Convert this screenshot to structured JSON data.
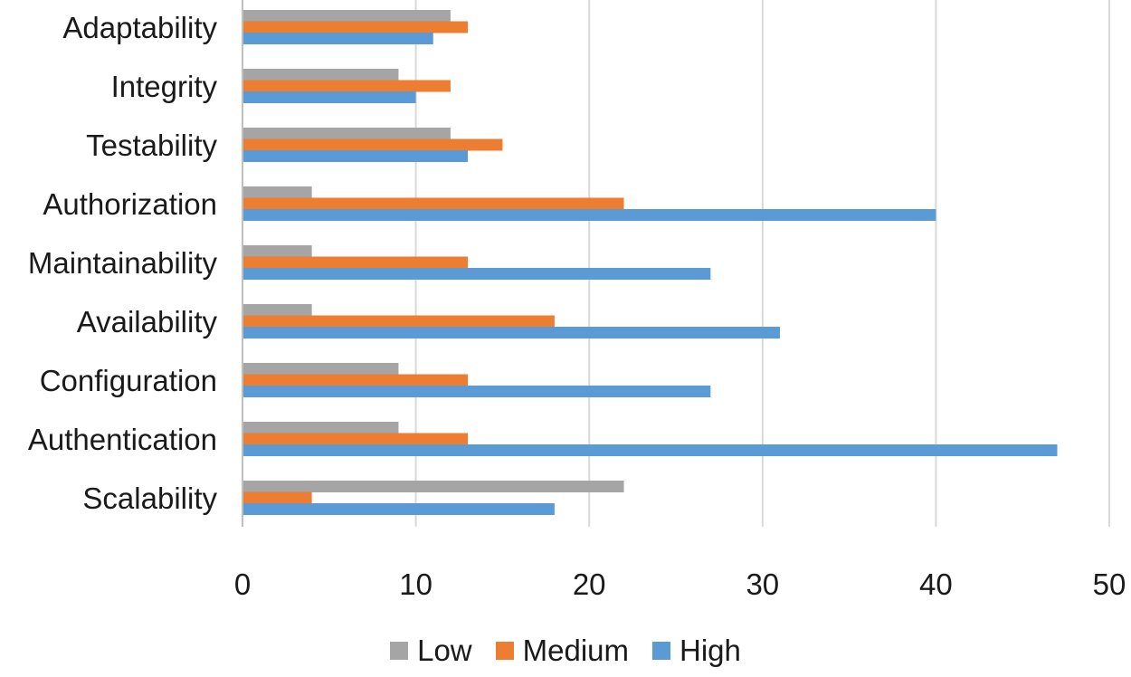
{
  "chart_data": {
    "type": "bar",
    "orientation": "horizontal",
    "title": "",
    "xlabel": "",
    "ylabel": "",
    "xlim": [
      0,
      50
    ],
    "x_ticks": [
      0,
      10,
      20,
      30,
      40,
      50
    ],
    "grid": true,
    "legend_position": "bottom",
    "categories": [
      "Adaptability",
      "Integrity",
      "Testability",
      "Authorization",
      "Maintainability",
      "Availability",
      "Configuration",
      "Authentication",
      "Scalability"
    ],
    "series": [
      {
        "name": "Low",
        "color": "#a5a5a5",
        "values": [
          12,
          9,
          12,
          4,
          4,
          4,
          9,
          9,
          22
        ]
      },
      {
        "name": "Medium",
        "color": "#ed7d31",
        "values": [
          13,
          12,
          15,
          22,
          13,
          18,
          13,
          13,
          4
        ]
      },
      {
        "name": "High",
        "color": "#5b9bd5",
        "values": [
          11,
          10,
          13,
          40,
          27,
          31,
          27,
          47,
          18
        ]
      }
    ]
  }
}
